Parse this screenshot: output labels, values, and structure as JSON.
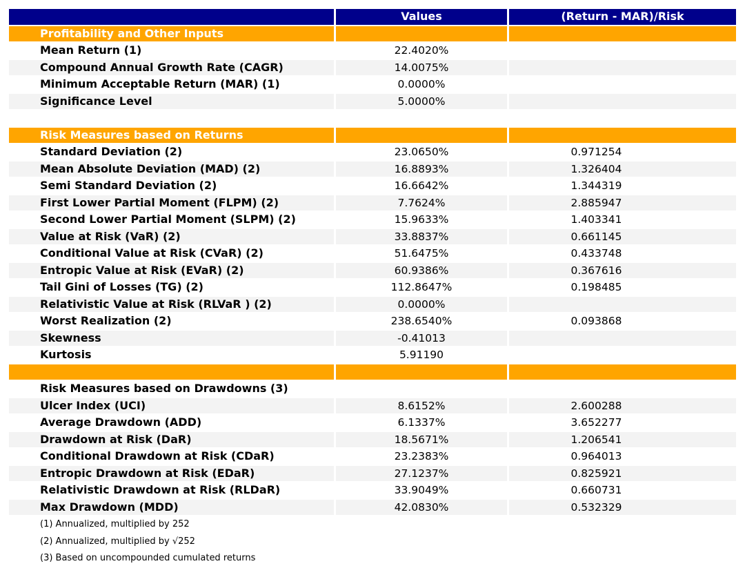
{
  "colors": {
    "page_bg": "#ffffff",
    "header_bg": "#00008B",
    "header_text": "#ffffff",
    "section_bg": "#FFA500",
    "section_text": "#ffffff",
    "stripe_bg": "#F3F3F3",
    "row_bg": "#ffffff",
    "text": "#000000"
  },
  "chart_data": {
    "type": "table",
    "title": "",
    "columns": [
      "",
      "Values",
      "(Return - MAR)/Risk"
    ],
    "rows": [
      {
        "type": "colheader"
      },
      {
        "type": "section",
        "label": "Profitability and Other Inputs"
      },
      {
        "type": "data",
        "label": "Mean Return (1)",
        "value": "22.4020%",
        "ratio": "",
        "shade": false
      },
      {
        "type": "data",
        "label": "Compound Annual Growth Rate (CAGR)",
        "value": "14.0075%",
        "ratio": "",
        "shade": true
      },
      {
        "type": "data",
        "label": "Minimum Acceptable Return (MAR) (1)",
        "value": "0.0000%",
        "ratio": "",
        "shade": false
      },
      {
        "type": "data",
        "label": "Significance Level",
        "value": "5.0000%",
        "ratio": "",
        "shade": true
      },
      {
        "type": "spacer"
      },
      {
        "type": "section",
        "label": "Risk Measures based on Returns"
      },
      {
        "type": "data",
        "label": "Standard Deviation (2)",
        "value": "23.0650%",
        "ratio": "0.971254",
        "shade": false
      },
      {
        "type": "data",
        "label": "Mean Absolute Deviation (MAD) (2)",
        "value": "16.8893%",
        "ratio": "1.326404",
        "shade": true
      },
      {
        "type": "data",
        "label": "Semi Standard Deviation (2)",
        "value": "16.6642%",
        "ratio": "1.344319",
        "shade": false
      },
      {
        "type": "data",
        "label": "First Lower Partial Moment (FLPM) (2)",
        "value": "7.7624%",
        "ratio": "2.885947",
        "shade": true
      },
      {
        "type": "data",
        "label": "Second Lower Partial Moment (SLPM) (2)",
        "value": "15.9633%",
        "ratio": "1.403341",
        "shade": false
      },
      {
        "type": "data",
        "label": "Value at Risk (VaR) (2)",
        "value": "33.8837%",
        "ratio": "0.661145",
        "shade": true
      },
      {
        "type": "data",
        "label": "Conditional Value at Risk (CVaR) (2)",
        "value": "51.6475%",
        "ratio": "0.433748",
        "shade": false
      },
      {
        "type": "data",
        "label": "Entropic Value at Risk (EVaR) (2)",
        "value": "60.9386%",
        "ratio": "0.367616",
        "shade": true
      },
      {
        "type": "data",
        "label": "Tail Gini of Losses (TG) (2)",
        "value": "112.8647%",
        "ratio": "0.198485",
        "shade": false
      },
      {
        "type": "data",
        "label": "Relativistic Value at Risk (RLVaR ) (2)",
        "value": "0.0000%",
        "ratio": "",
        "shade": true
      },
      {
        "type": "data",
        "label": "Worst Realization (2)",
        "value": "238.6540%",
        "ratio": "0.093868",
        "shade": false
      },
      {
        "type": "data",
        "label": "Skewness",
        "value": "-0.41013",
        "ratio": "",
        "shade": true
      },
      {
        "type": "data",
        "label": "Kurtosis",
        "value": "5.91190",
        "ratio": "",
        "shade": false
      },
      {
        "type": "section",
        "label": ""
      },
      {
        "type": "data",
        "label": "Risk Measures based on Drawdowns (3)",
        "value": "",
        "ratio": "",
        "shade": false
      },
      {
        "type": "data",
        "label": "Ulcer Index (UCI)",
        "value": "8.6152%",
        "ratio": "2.600288",
        "shade": true
      },
      {
        "type": "data",
        "label": "Average Drawdown (ADD)",
        "value": "6.1337%",
        "ratio": "3.652277",
        "shade": false
      },
      {
        "type": "data",
        "label": "Drawdown at Risk (DaR)",
        "value": "18.5671%",
        "ratio": "1.206541",
        "shade": true
      },
      {
        "type": "data",
        "label": "Conditional Drawdown at Risk (CDaR)",
        "value": "23.2383%",
        "ratio": "0.964013",
        "shade": false
      },
      {
        "type": "data",
        "label": "Entropic Drawdown at Risk (EDaR)",
        "value": "27.1237%",
        "ratio": "0.825921",
        "shade": true
      },
      {
        "type": "data",
        "label": "Relativistic Drawdown at Risk (RLDaR)",
        "value": "33.9049%",
        "ratio": "0.660731",
        "shade": false
      },
      {
        "type": "data",
        "label": "Max Drawdown (MDD)",
        "value": "42.0830%",
        "ratio": "0.532329",
        "shade": true
      }
    ],
    "footnotes": [
      "(1) Annualized, multiplied by 252",
      "(2) Annualized, multiplied by √252",
      "(3) Based on uncompounded cumulated returns"
    ]
  }
}
